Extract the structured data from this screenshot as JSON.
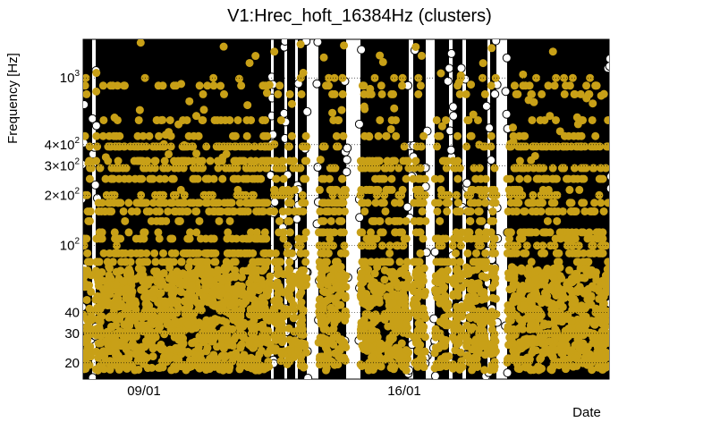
{
  "chart_data": {
    "type": "scatter",
    "title": "V1:Hrec_hoft_16384Hz (clusters)",
    "xlabel": "Date",
    "ylabel": "Frequency [Hz]",
    "y_scale": "log",
    "ylim": [
      16,
      1700
    ],
    "x_ticks": [
      {
        "label": "09/01",
        "date": "09/01"
      },
      {
        "label": "16/01",
        "date": "16/01"
      }
    ],
    "y_ticks": [
      {
        "value": 20,
        "base": "20",
        "exp": ""
      },
      {
        "value": 30,
        "base": "30",
        "exp": ""
      },
      {
        "value": 40,
        "base": "40",
        "exp": ""
      },
      {
        "value": 100,
        "base": "10",
        "exp": "2"
      },
      {
        "value": 200,
        "base": "2×10",
        "exp": "2"
      },
      {
        "value": 300,
        "base": "3×10",
        "exp": "2"
      },
      {
        "value": 400,
        "base": "4×10",
        "exp": "2"
      },
      {
        "value": 1000,
        "base": "10",
        "exp": "3"
      }
    ],
    "grid": true,
    "series": [
      {
        "marker": "hollow-circle",
        "color": "#000000"
      },
      {
        "marker": "filled-circle",
        "color": "#c8a017"
      }
    ],
    "notes": "dense cluster trigger plot; individual points not enumerable"
  }
}
